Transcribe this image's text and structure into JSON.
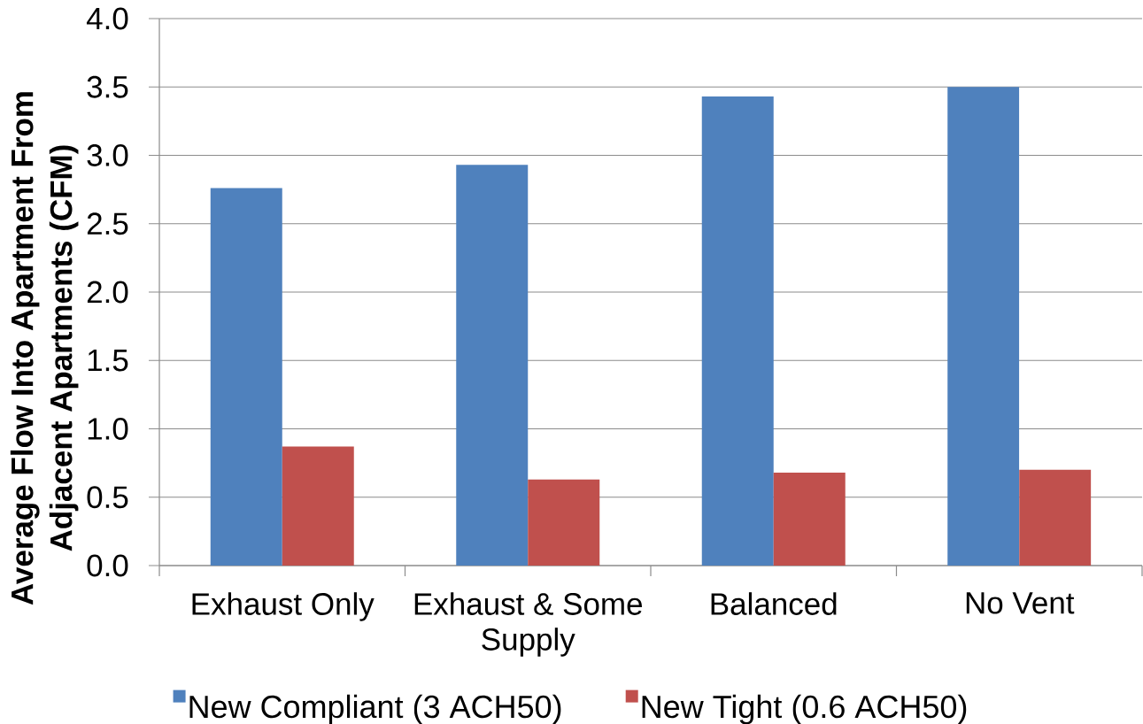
{
  "chart_data": {
    "type": "bar",
    "ylabel": "Average Flow Into Apartment From Adjacent Apartments (CFM)",
    "categories": [
      "Exhaust Only",
      "Exhaust & Some Supply",
      "Balanced",
      "No Vent"
    ],
    "series": [
      {
        "name": "New Compliant (3 ACH50)",
        "color": "#4f81bd",
        "values": [
          2.76,
          2.93,
          3.43,
          3.5
        ]
      },
      {
        "name": "New Tight (0.6 ACH50)",
        "color": "#c0504d",
        "values": [
          0.87,
          0.63,
          0.68,
          0.7
        ]
      }
    ],
    "ylim": [
      0,
      4
    ],
    "yticks": [
      {
        "value": 0,
        "label": "0.0"
      },
      0.5,
      {
        "value": 1,
        "label": "1.0"
      },
      1.5,
      {
        "value": 2,
        "label": "2.0"
      },
      2.5,
      {
        "value": 3,
        "label": "3.0"
      },
      3.5,
      {
        "value": 4,
        "label": "4.0"
      }
    ],
    "grid": "y",
    "legend": "bottom"
  }
}
